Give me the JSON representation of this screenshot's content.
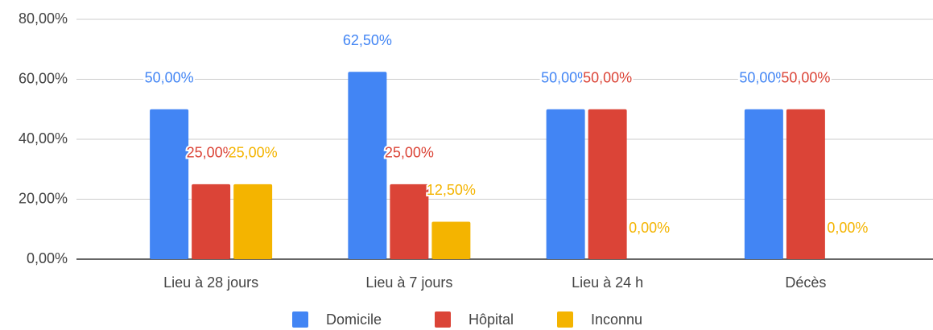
{
  "chart_data": {
    "type": "bar",
    "categories": [
      "Lieu à 28 jours",
      "Lieu à 7 jours",
      "Lieu à 24 h",
      "Décès"
    ],
    "series": [
      {
        "name": "Domicile",
        "color": "#4285f4",
        "values": [
          50,
          62.5,
          50,
          50
        ],
        "value_labels": [
          "50,00%",
          "62,50%",
          "50,00%",
          "50,00%"
        ]
      },
      {
        "name": "Hôpital",
        "color": "#db4437",
        "values": [
          25,
          25,
          50,
          50
        ],
        "value_labels": [
          "25,00%",
          "25,00%",
          "50,00%",
          "50,00%"
        ]
      },
      {
        "name": "Inconnu",
        "color": "#f4b400",
        "values": [
          25,
          12.5,
          0,
          0
        ],
        "value_labels": [
          "25,00%",
          "12,50%",
          "0,00%",
          "0,00%"
        ]
      }
    ],
    "ylim": [
      0,
      80
    ],
    "yticks": [
      {
        "value": 0,
        "label": "0,00%"
      },
      {
        "value": 20,
        "label": "20,00%"
      },
      {
        "value": 40,
        "label": "40,00%"
      },
      {
        "value": 60,
        "label": "60,00%"
      },
      {
        "value": 80,
        "label": "80,00%"
      }
    ],
    "grid": true,
    "legend": "bottom"
  }
}
